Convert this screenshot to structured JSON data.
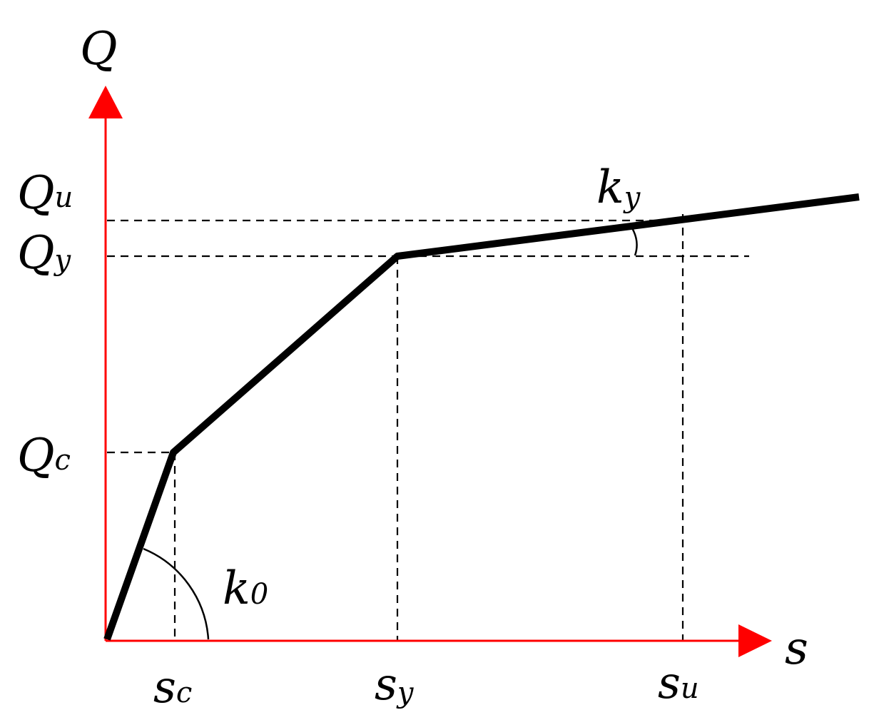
{
  "axes": {
    "y_label": "Q",
    "x_label": "s",
    "color": "#ff0000"
  },
  "curve_color": "#000000",
  "y_levels": [
    {
      "main": "Q",
      "sub": "u"
    },
    {
      "main": "Q",
      "sub": "y"
    },
    {
      "main": "Q",
      "sub": "c"
    }
  ],
  "x_levels": [
    {
      "main": "s",
      "sub": "c"
    },
    {
      "main": "s",
      "sub": "y"
    },
    {
      "main": "s",
      "sub": "u"
    }
  ],
  "stiffness": [
    {
      "main": "k",
      "sub": "0"
    },
    {
      "main": "k",
      "sub": "y"
    }
  ]
}
